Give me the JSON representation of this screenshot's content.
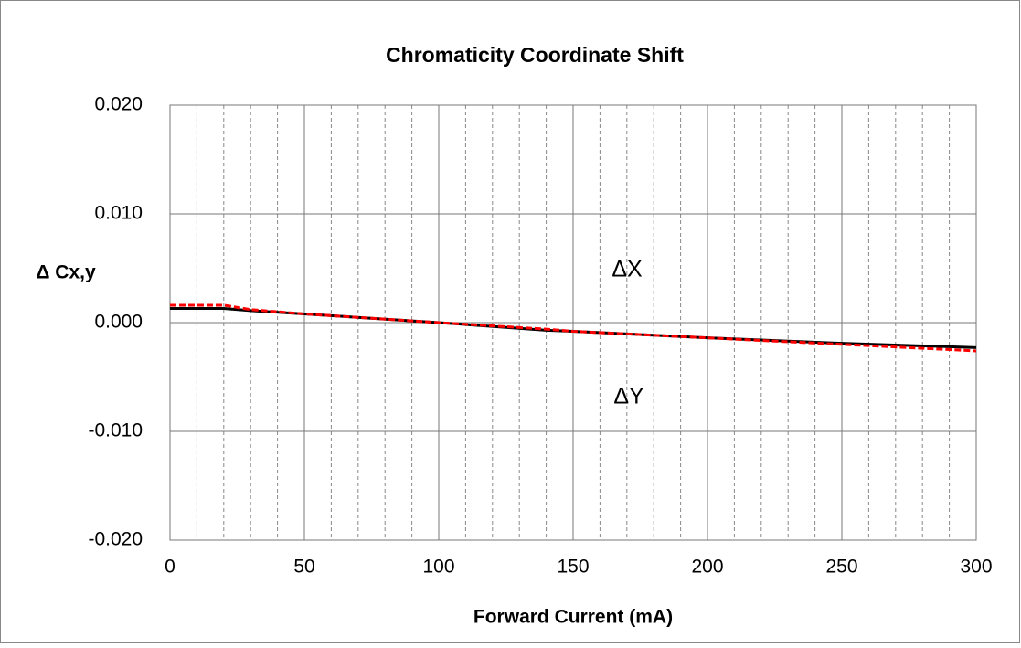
{
  "chart_data": {
    "type": "line",
    "title": "Chromaticity Coordinate Shift",
    "xlabel": "Forward Current (mA)",
    "ylabel": "Δ Cx,y",
    "x": [
      0,
      20,
      30,
      50,
      100,
      140,
      150,
      200,
      250,
      300
    ],
    "series": [
      {
        "name": "ΔX",
        "color": "#000000",
        "dash": false,
        "values": [
          0.0013,
          0.0013,
          0.0011,
          0.0008,
          0.0,
          -0.0007,
          -0.0008,
          -0.0014,
          -0.0019,
          -0.0023
        ]
      },
      {
        "name": "ΔY",
        "color": "#ff0000",
        "dash": true,
        "values": [
          0.0016,
          0.0016,
          0.0012,
          0.0008,
          0.0,
          -0.0006,
          -0.0008,
          -0.0014,
          -0.002,
          -0.0026
        ]
      }
    ],
    "xlim": [
      0,
      300
    ],
    "xticks": [
      0,
      50,
      100,
      150,
      200,
      250,
      300
    ],
    "x_minor_ticks": [
      10,
      20,
      30,
      40,
      60,
      70,
      80,
      90,
      110,
      120,
      130,
      140,
      160,
      170,
      180,
      190,
      210,
      220,
      230,
      240,
      260,
      270,
      280,
      290
    ],
    "ylim": [
      -0.02,
      0.02
    ],
    "yticks": [
      {
        "value": 0.02,
        "label": "0.020"
      },
      {
        "value": 0.01,
        "label": "0.010"
      },
      {
        "value": 0,
        "label": "0.000"
      },
      {
        "value": -0.01,
        "label": "-0.010"
      },
      {
        "value": -0.02,
        "label": "-0.020"
      }
    ],
    "grid": true
  }
}
